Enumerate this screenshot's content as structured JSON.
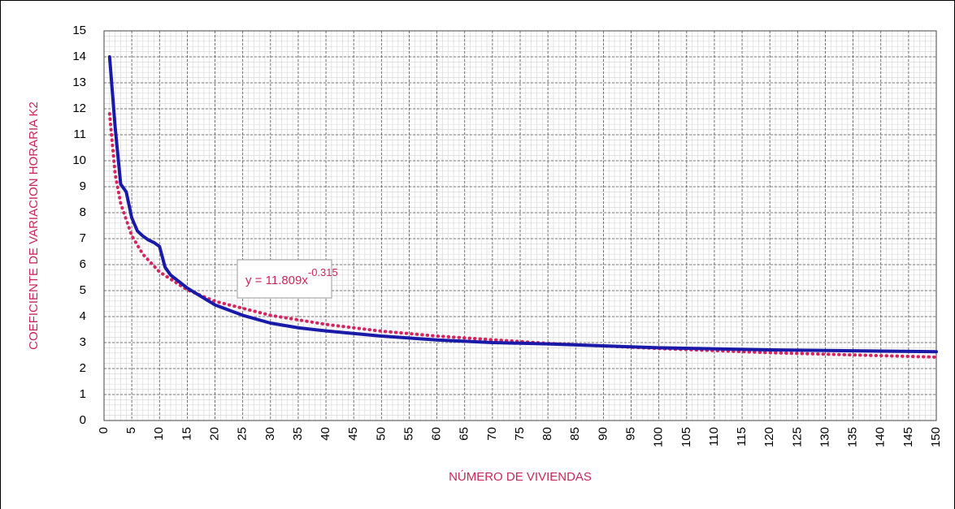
{
  "chart_data": {
    "type": "line",
    "xlabel": "NÚMERO DE VIVIENDAS",
    "ylabel": "COEFICIENTE DE VARIACION HORARIA K2",
    "xlim": [
      0,
      150
    ],
    "xticks": [
      0,
      5,
      10,
      15,
      20,
      25,
      30,
      35,
      40,
      45,
      50,
      55,
      60,
      65,
      70,
      75,
      80,
      85,
      90,
      95,
      100,
      105,
      110,
      115,
      120,
      125,
      130,
      135,
      140,
      145,
      150
    ],
    "ylim": [
      0,
      15
    ],
    "yticks": [
      0,
      1,
      2,
      3,
      4,
      5,
      6,
      7,
      8,
      9,
      10,
      11,
      12,
      13,
      14,
      15
    ],
    "grid": true,
    "minor_grid": {
      "x": 1,
      "y": 0.2
    },
    "label_color": "#c8285a",
    "series": [
      {
        "color": "#1a1aa8",
        "style": "solid",
        "x": [
          1,
          2,
          3,
          4,
          5,
          6,
          7,
          8,
          9,
          10,
          11,
          12,
          15,
          20,
          25,
          30,
          35,
          40,
          50,
          60,
          70,
          80,
          100,
          120,
          150
        ],
        "values": [
          14,
          11.3,
          9.1,
          8.8,
          7.8,
          7.3,
          7.1,
          6.95,
          6.85,
          6.7,
          5.9,
          5.6,
          5.1,
          4.45,
          4.05,
          3.75,
          3.57,
          3.45,
          3.25,
          3.1,
          3.0,
          2.95,
          2.8,
          2.72,
          2.65
        ]
      },
      {
        "color": "#d6245f",
        "style": "dotted",
        "x": [
          1,
          2,
          3,
          5,
          7,
          10,
          15,
          20,
          30,
          40,
          50,
          60,
          80,
          100,
          120,
          150
        ],
        "values": [
          11.81,
          9.49,
          8.36,
          7.11,
          6.4,
          5.72,
          5.03,
          4.59,
          4.05,
          3.7,
          3.44,
          3.25,
          2.97,
          2.77,
          2.61,
          2.44
        ]
      }
    ],
    "annotation": {
      "text": "y = 11.809x",
      "superscript": "-0.315"
    }
  }
}
